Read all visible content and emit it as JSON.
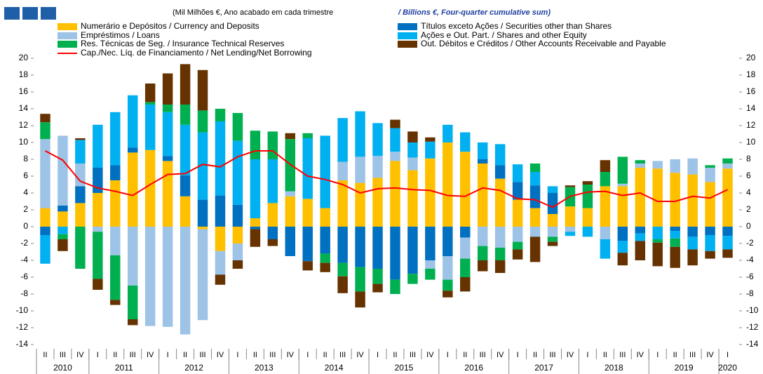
{
  "chart_data": {
    "type": "bar",
    "stacked": true,
    "subtitle_pt": "(Mil Milhões €, Ano acabado em cada trimestre",
    "subtitle_en": "/ Billions  €, Four-quarter cumulative sum)",
    "categories": [
      "II",
      "III",
      "IV",
      "I",
      "II",
      "III",
      "IV",
      "I",
      "II",
      "III",
      "IV",
      "I",
      "II",
      "III",
      "IV",
      "I",
      "II",
      "III",
      "IV",
      "I",
      "II",
      "III",
      "IV",
      "I",
      "II",
      "III",
      "IV",
      "I",
      "II",
      "III",
      "IV",
      "I",
      "II",
      "III",
      "IV",
      "I",
      "II",
      "III",
      "IV",
      "I"
    ],
    "years": [
      "2010",
      "2011",
      "2012",
      "2013",
      "2014",
      "2015",
      "2016",
      "2017",
      "2018",
      "2019",
      "2020"
    ],
    "ylim": [
      -14,
      20
    ],
    "yticks": [
      -14,
      -12,
      -10,
      -8,
      -6,
      -4,
      -2,
      0,
      2,
      4,
      6,
      8,
      10,
      12,
      14,
      16,
      18,
      20
    ],
    "y2lim": [
      -14,
      20
    ],
    "y2ticks": [
      -14,
      -12,
      -10,
      -8,
      -6,
      -4,
      -2,
      0,
      2,
      4,
      6,
      8,
      10,
      12,
      14,
      16,
      18,
      20
    ],
    "grid": false,
    "series": [
      {
        "name": "Numerário e Depósitos / Currency and Deposits",
        "type": "bar",
        "color": "#ffc000",
        "values": [
          2.2,
          1.8,
          2.8,
          4.0,
          5.5,
          8.8,
          9.1,
          7.8,
          3.6,
          -0.3,
          -2.9,
          -2.0,
          1.0,
          2.8,
          3.6,
          3.3,
          2.2,
          5.5,
          5.2,
          5.8,
          7.8,
          6.7,
          8.1,
          10.0,
          8.9,
          7.5,
          5.7,
          3.2,
          2.2,
          1.5,
          2.4,
          2.2,
          4.8,
          4.8,
          7.0,
          6.9,
          6.4,
          6.2,
          5.3,
          6.9
        ]
      },
      {
        "name": "Títulos exceto Ações / Securities other than Shares",
        "type": "bar",
        "color": "#0070c0",
        "values": [
          -1.0,
          0.7,
          2.0,
          3.0,
          1.8,
          0.6,
          0,
          0.6,
          2.5,
          3.2,
          3.7,
          2.6,
          -0.3,
          -1.5,
          -3.5,
          -4.1,
          -3.2,
          -4.3,
          -4.8,
          -5.0,
          -6.3,
          -5.6,
          -4.0,
          -3.5,
          -1.3,
          0.5,
          1.6,
          2.1,
          2.7,
          2.5,
          0,
          0,
          0,
          -1.7,
          -0.8,
          0,
          -0.5,
          -1.2,
          -1.0,
          -1.1
        ]
      },
      {
        "name": "Empréstimos / Loans",
        "type": "bar",
        "color": "#9dc3e6",
        "values": [
          8.2,
          8.3,
          2.7,
          -0.6,
          -3.4,
          -7.0,
          -11.8,
          -11.9,
          -12.8,
          -10.8,
          -2.8,
          -2.0,
          0,
          0,
          0.6,
          0,
          0,
          2.2,
          3.1,
          2.6,
          1.1,
          1.5,
          -1.0,
          -2.8,
          -2.5,
          -2.3,
          -2.5,
          -1.8,
          -1.2,
          -1.2,
          -0.6,
          0,
          -1.5,
          0.3,
          0.5,
          0.9,
          1.6,
          1.9,
          1.7,
          0.6
        ]
      },
      {
        "name": "Ações e Out. Part. / Shares and other Equity",
        "type": "bar",
        "color": "#00b0f0",
        "values": [
          -3.4,
          -0.9,
          2.8,
          5.1,
          6.3,
          6.2,
          5.4,
          5.2,
          6.0,
          8.0,
          8.8,
          7.6,
          7.0,
          5.2,
          0,
          7.2,
          8.6,
          5.2,
          5.4,
          3.9,
          2.8,
          1.8,
          2.0,
          2.1,
          2.3,
          2.0,
          2.5,
          2.1,
          1.6,
          0.8,
          -0.5,
          -1.2,
          -2.3,
          -1.4,
          -0.9,
          -1.5,
          -0.9,
          -1.5,
          -1.9,
          -1.6
        ]
      },
      {
        "name": "Res. Técnicas de Seg. / Insurance Technical Reserves",
        "type": "bar",
        "color": "#00b050",
        "values": [
          2.0,
          -0.6,
          -5.0,
          -5.6,
          -5.3,
          -4.0,
          0.3,
          0.9,
          2.4,
          2.6,
          1.5,
          3.3,
          3.4,
          3.3,
          6.2,
          0.6,
          -1.1,
          -1.6,
          -2.9,
          -1.8,
          -1.7,
          -1.2,
          -1.3,
          -1.3,
          -2.2,
          -1.7,
          -1.5,
          -0.9,
          1.0,
          -0.6,
          2.3,
          2.8,
          1.7,
          3.2,
          0.4,
          -0.4,
          -1.0,
          0,
          0.3,
          0.6
        ]
      },
      {
        "name": "Out. Débitos e Créditos / Other Accounts Receivable and Payable",
        "type": "bar",
        "color": "#663300",
        "values": [
          1.0,
          -1.4,
          0.2,
          -1.3,
          -0.6,
          -0.7,
          2.2,
          3.7,
          4.8,
          4.8,
          -1.2,
          -1.0,
          -2.1,
          -0.8,
          0.7,
          -1.1,
          -1.1,
          -2.0,
          -1.9,
          -1.0,
          1.0,
          1.3,
          0.5,
          -0.8,
          -1.7,
          -1.3,
          -1.5,
          -1.2,
          -3.0,
          -0.5,
          0.2,
          0.4,
          1.4,
          -1.5,
          -2.3,
          -2.8,
          -2.5,
          -1.9,
          -0.9,
          -1.0
        ]
      },
      {
        "name": "Cap./Nec. Líq. de Financiamento / Net Lending/Net Borrowing",
        "type": "line",
        "color": "#ff0000",
        "values": [
          9.0,
          7.9,
          5.4,
          4.6,
          4.2,
          3.7,
          5.0,
          6.2,
          6.3,
          7.4,
          7.1,
          8.3,
          9.0,
          9.0,
          7.4,
          6.0,
          5.6,
          5.0,
          4.0,
          4.5,
          4.6,
          4.4,
          4.3,
          3.7,
          3.6,
          4.6,
          4.3,
          3.3,
          3.2,
          2.3,
          3.6,
          4.1,
          4.2,
          3.7,
          4.0,
          3.0,
          3.0,
          3.6,
          3.4,
          4.4
        ]
      }
    ]
  }
}
